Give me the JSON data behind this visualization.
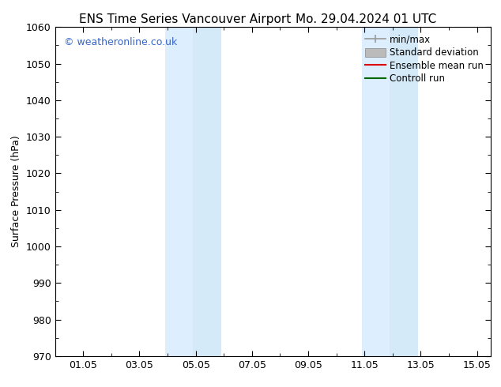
{
  "title_left": "ENS Time Series Vancouver Airport",
  "title_right": "Mo. 29.04.2024 01 UTC",
  "ylabel": "Surface Pressure (hPa)",
  "ylim": [
    970,
    1060
  ],
  "yticks": [
    970,
    980,
    990,
    1000,
    1010,
    1020,
    1030,
    1040,
    1050,
    1060
  ],
  "xtick_labels": [
    "01.05",
    "03.05",
    "05.05",
    "07.05",
    "09.05",
    "11.05",
    "13.05",
    "15.05"
  ],
  "xtick_positions": [
    1,
    3,
    5,
    7,
    9,
    11,
    13,
    15
  ],
  "xmin": 0.0,
  "xmax": 15.5,
  "shaded_bands": [
    {
      "xmin": 3.9,
      "xmax": 4.9,
      "color": "#ddeeff"
    },
    {
      "xmin": 4.9,
      "xmax": 5.9,
      "color": "#d5eaf8"
    },
    {
      "xmin": 10.9,
      "xmax": 11.9,
      "color": "#ddeeff"
    },
    {
      "xmin": 11.9,
      "xmax": 12.9,
      "color": "#d5eaf8"
    }
  ],
  "watermark": "© weatheronline.co.uk",
  "watermark_color": "#3366cc",
  "legend_entries": [
    {
      "label": "min/max",
      "color": "#999999",
      "type": "minmax"
    },
    {
      "label": "Standard deviation",
      "color": "#bbbbbb",
      "type": "fill"
    },
    {
      "label": "Ensemble mean run",
      "color": "#dd0000",
      "type": "line"
    },
    {
      "label": "Controll run",
      "color": "#006600",
      "type": "line"
    }
  ],
  "background_color": "#ffffff",
  "plot_bg_color": "#ffffff",
  "tick_color": "#000000",
  "title_fontsize": 11,
  "label_fontsize": 9,
  "tick_fontsize": 9,
  "legend_fontsize": 8.5
}
